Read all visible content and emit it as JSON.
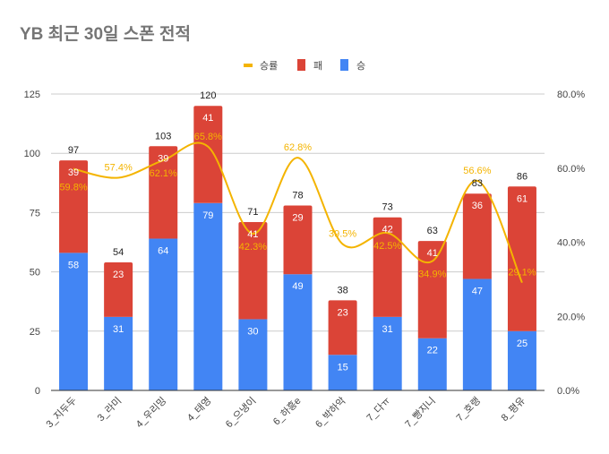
{
  "chart_data": {
    "type": "bar",
    "stacked": true,
    "title": "YB 최근 30일 스폰 전적",
    "categories": [
      "3_지두두",
      "3_라미",
      "4_우리밍",
      "4_태영",
      "6_으냉이",
      "6_하흥e",
      "6_박하악",
      "7_다ㅠ",
      "7_빵지니",
      "7_호랭",
      "8_평유"
    ],
    "series": [
      {
        "name": "승",
        "color": "#4285f4",
        "values": [
          58,
          31,
          64,
          79,
          30,
          49,
          15,
          31,
          22,
          47,
          25
        ]
      },
      {
        "name": "패",
        "color": "#db4437",
        "values": [
          39,
          23,
          39,
          41,
          41,
          29,
          23,
          42,
          41,
          36,
          61
        ]
      }
    ],
    "totals": [
      97,
      54,
      103,
      120,
      71,
      78,
      38,
      73,
      63,
      83,
      86
    ],
    "line_series": {
      "name": "승률",
      "color": "#f4b400",
      "axis": "right",
      "values": [
        59.8,
        57.4,
        62.1,
        65.8,
        42.3,
        62.8,
        39.5,
        42.5,
        34.9,
        56.6,
        29.1
      ],
      "labels": [
        "59.8%",
        "57.4%",
        "62.1%",
        "65.8%",
        "42.3%",
        "62.8%",
        "39.5%",
        "42.5%",
        "34.9%",
        "56.6%",
        "29.1%"
      ]
    },
    "ylim": [
      0,
      125
    ],
    "yticks": [
      "0",
      "25",
      "50",
      "75",
      "100",
      "125"
    ],
    "y2lim": [
      0,
      80
    ],
    "y2ticks": [
      "0.0%",
      "20.0%",
      "40.0%",
      "60.0%",
      "80.0%"
    ],
    "grid": true,
    "legend_placement": "top",
    "legend": [
      "승률",
      "패",
      "승"
    ]
  }
}
